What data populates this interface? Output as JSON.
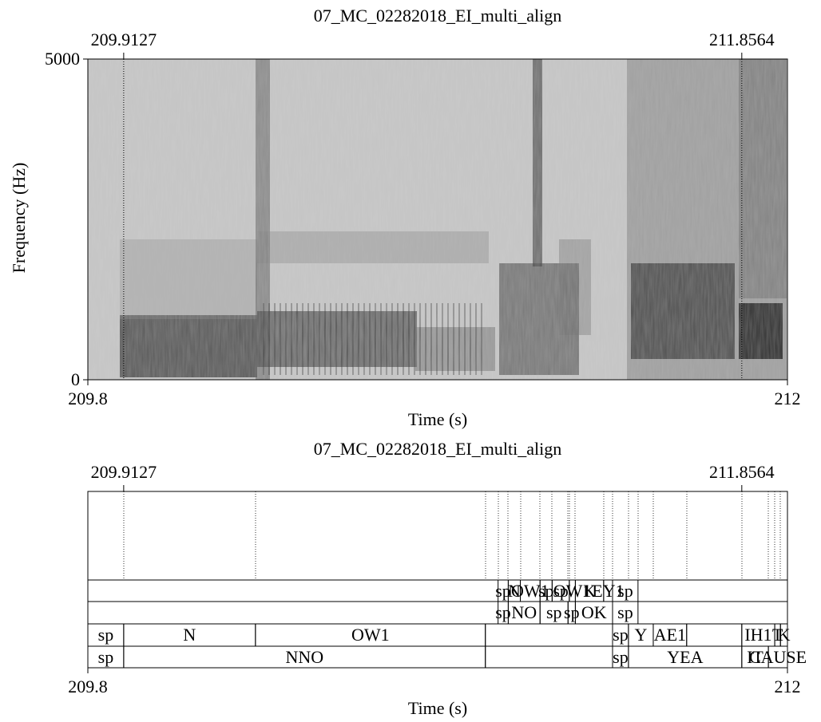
{
  "chart_data": [
    {
      "type": "heatmap",
      "title": "07_MC_02282018_EI_multi_align",
      "xlabel": "Time (s)",
      "ylabel": "Frequency (Hz)",
      "xlim": [
        209.8,
        212
      ],
      "ylim": [
        0,
        5000
      ],
      "x_ticks": [
        "209.8",
        "212"
      ],
      "y_ticks": [
        "0",
        "5000"
      ],
      "top_marks": [
        {
          "label": "209.9127",
          "t": 209.9127
        },
        {
          "label": "211.8564",
          "t": 211.8564
        }
      ],
      "colormap": "grayscale (darker = more energy)"
    },
    {
      "type": "table",
      "title": "07_MC_02282018_EI_multi_align",
      "xlabel": "Time (s)",
      "xlim": [
        209.8,
        212
      ],
      "x_ticks": [
        "209.8",
        "212"
      ],
      "top_marks": [
        {
          "label": "209.9127",
          "t": 209.9127
        },
        {
          "label": "211.8564",
          "t": 211.8564
        }
      ],
      "tiers": [
        {
          "intervals": [
            {
              "start": 211.09,
              "end": 211.122,
              "text": "sp"
            },
            {
              "start": 211.122,
              "end": 211.16,
              "text": "N"
            },
            {
              "start": 211.16,
              "end": 211.222,
              "text": "OW1"
            },
            {
              "start": 211.222,
              "end": 211.26,
              "text": "sp"
            },
            {
              "start": 211.26,
              "end": 211.314,
              "text": "sp"
            },
            {
              "start": 211.314,
              "end": 211.333,
              "text": "OW1"
            },
            {
              "start": 211.333,
              "end": 211.422,
              "text": "K"
            },
            {
              "start": 211.422,
              "end": 211.45,
              "text": "EY1"
            },
            {
              "start": 211.45,
              "end": 211.53,
              "text": "sp"
            }
          ]
        },
        {
          "intervals": [
            {
              "start": 211.09,
              "end": 211.122,
              "text": "sp"
            },
            {
              "start": 211.122,
              "end": 211.222,
              "text": "NO"
            },
            {
              "start": 211.222,
              "end": 211.31,
              "text": "sp"
            },
            {
              "start": 211.31,
              "end": 211.333,
              "text": "sp"
            },
            {
              "start": 211.333,
              "end": 211.45,
              "text": "OK"
            },
            {
              "start": 211.45,
              "end": 211.53,
              "text": "sp"
            }
          ]
        },
        {
          "intervals": [
            {
              "start": 209.8,
              "end": 209.9127,
              "text": "sp"
            },
            {
              "start": 209.9127,
              "end": 210.327,
              "text": "N"
            },
            {
              "start": 210.327,
              "end": 211.05,
              "text": "OW1"
            },
            {
              "start": 211.05,
              "end": 211.45,
              "text": ""
            },
            {
              "start": 211.45,
              "end": 211.5,
              "text": "sp"
            },
            {
              "start": 211.5,
              "end": 211.578,
              "text": "Y"
            },
            {
              "start": 211.578,
              "end": 211.683,
              "text": "AE1"
            },
            {
              "start": 211.683,
              "end": 211.8564,
              "text": ""
            },
            {
              "start": 211.8564,
              "end": 211.96,
              "text": "IH1"
            },
            {
              "start": 211.96,
              "end": 211.978,
              "text": "T"
            },
            {
              "start": 211.978,
              "end": 212.0,
              "text": "K"
            }
          ]
        },
        {
          "intervals": [
            {
              "start": 209.8,
              "end": 209.9127,
              "text": "sp"
            },
            {
              "start": 209.9127,
              "end": 211.05,
              "text": "NNO"
            },
            {
              "start": 211.05,
              "end": 211.45,
              "text": ""
            },
            {
              "start": 211.45,
              "end": 211.5,
              "text": "sp"
            },
            {
              "start": 211.5,
              "end": 211.8564,
              "text": "YEA"
            },
            {
              "start": 211.8564,
              "end": 211.94,
              "text": "IT"
            },
            {
              "start": 211.94,
              "end": 212.0,
              "text": "CAUSE"
            }
          ]
        }
      ]
    }
  ]
}
